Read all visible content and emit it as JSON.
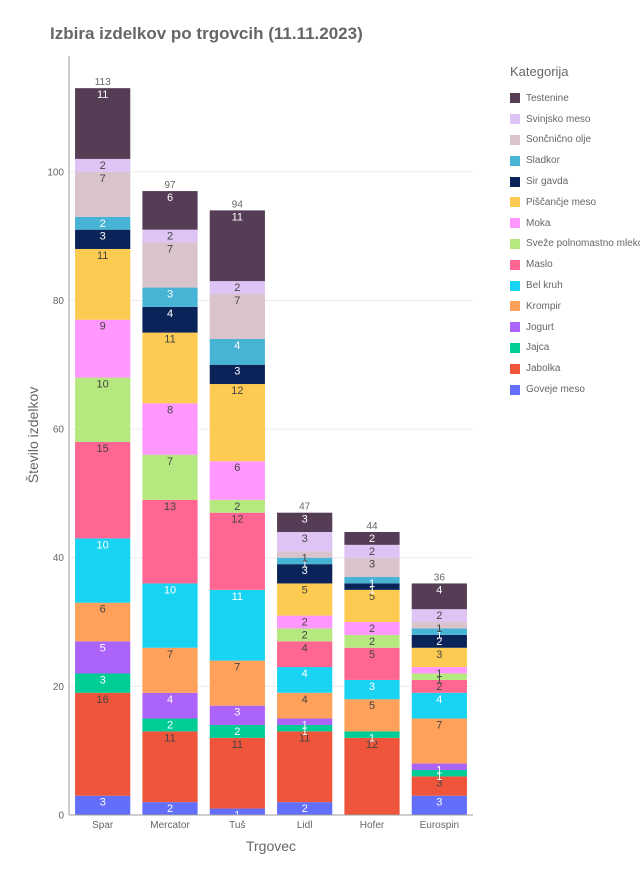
{
  "chart_data": {
    "type": "bar",
    "stacked": true,
    "title": "Izbira izdelkov po trgovcih (11.11.2023)",
    "xlabel": "Trgovec",
    "ylabel": "Število izdelkov",
    "ylim": [
      0,
      118
    ],
    "yticks": [
      0,
      20,
      40,
      60,
      80,
      100
    ],
    "legend_title": "Kategorija",
    "legend_position": "right",
    "categories": [
      "Spar",
      "Mercator",
      "Tuš",
      "Lidl",
      "Hofer",
      "Eurospin"
    ],
    "totals": [
      113,
      97,
      94,
      47,
      44,
      36
    ],
    "series": [
      {
        "name": "Goveje meso",
        "color": "#636efa",
        "values": [
          3,
          2,
          1,
          2,
          0,
          3
        ]
      },
      {
        "name": "Jabolka",
        "color": "#ef553b",
        "values": [
          16,
          11,
          11,
          11,
          12,
          3
        ]
      },
      {
        "name": "Jajca",
        "color": "#00cc96",
        "values": [
          3,
          2,
          2,
          1,
          1,
          1
        ]
      },
      {
        "name": "Jogurt",
        "color": "#ab63fa",
        "values": [
          5,
          4,
          3,
          1,
          0,
          1
        ]
      },
      {
        "name": "Krompir",
        "color": "#ffa15a",
        "values": [
          6,
          7,
          7,
          4,
          5,
          7
        ]
      },
      {
        "name": "Bel kruh",
        "color": "#19d3f3",
        "values": [
          10,
          10,
          11,
          4,
          3,
          4
        ]
      },
      {
        "name": "Maslo",
        "color": "#ff6692",
        "values": [
          15,
          13,
          12,
          4,
          5,
          2
        ]
      },
      {
        "name": "Sveže polnomastno mleko",
        "color": "#b6e880",
        "values": [
          10,
          7,
          2,
          2,
          2,
          1
        ]
      },
      {
        "name": "Moka",
        "color": "#ff97ff",
        "values": [
          9,
          8,
          6,
          2,
          2,
          1
        ]
      },
      {
        "name": "Piščančje meso",
        "color": "#fecb52",
        "values": [
          11,
          11,
          12,
          5,
          5,
          3
        ]
      },
      {
        "name": "Sir gavda",
        "color": "#0a2459",
        "values": [
          3,
          4,
          3,
          3,
          1,
          2
        ]
      },
      {
        "name": "Sladkor",
        "color": "#47b4d5",
        "values": [
          2,
          3,
          4,
          1,
          1,
          1
        ]
      },
      {
        "name": "Sončnično olje",
        "color": "#d9c3cc",
        "values": [
          7,
          7,
          7,
          1,
          3,
          1
        ]
      },
      {
        "name": "Svinjsko meso",
        "color": "#dec4f5",
        "values": [
          2,
          2,
          2,
          3,
          2,
          2
        ]
      },
      {
        "name": "Testenine",
        "color": "#543d55",
        "values": [
          11,
          6,
          11,
          3,
          2,
          4
        ]
      }
    ]
  }
}
